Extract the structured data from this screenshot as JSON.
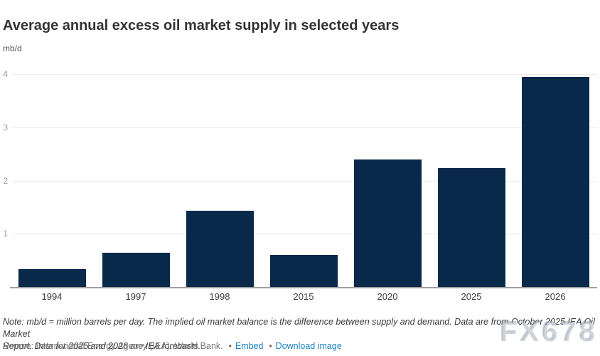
{
  "chart_data": {
    "type": "bar",
    "title": "Average annual excess oil market supply in selected years",
    "ylabel": "mb/d",
    "xlabel": "",
    "categories": [
      "1994",
      "1997",
      "1998",
      "2015",
      "2020",
      "2025",
      "2026"
    ],
    "values": [
      0.33,
      0.64,
      1.43,
      0.6,
      2.39,
      2.24,
      3.95
    ],
    "yticks": [
      1,
      2,
      3,
      4
    ],
    "ylim": [
      0,
      4.2
    ],
    "grid": true,
    "legend": "none",
    "bar_color": "#08294a"
  },
  "footer": {
    "note_line1": "Note: mb/d = million barrels per day. The implied oil market balance is the difference between supply and demand. Data are from October 2025 IEA Oil Market",
    "note_line2": "Report. Data for 2025 and 2026 are IEA forecasts.",
    "source": "Source: International Energy Agency (IEA); World Bank.",
    "bullet": "•",
    "embed_label": "Embed",
    "download_label": "Download image",
    "watermark": "FX678"
  },
  "colors": {
    "bar": "#08294a",
    "gridline": "#ebebeb",
    "axis_line": "#a0a0a0",
    "y_tick_text": "#999999",
    "x_tick_text": "#3c3c3c",
    "title_text": "#333333",
    "link": "#1a80c4",
    "watermark": "#96a2b1"
  }
}
